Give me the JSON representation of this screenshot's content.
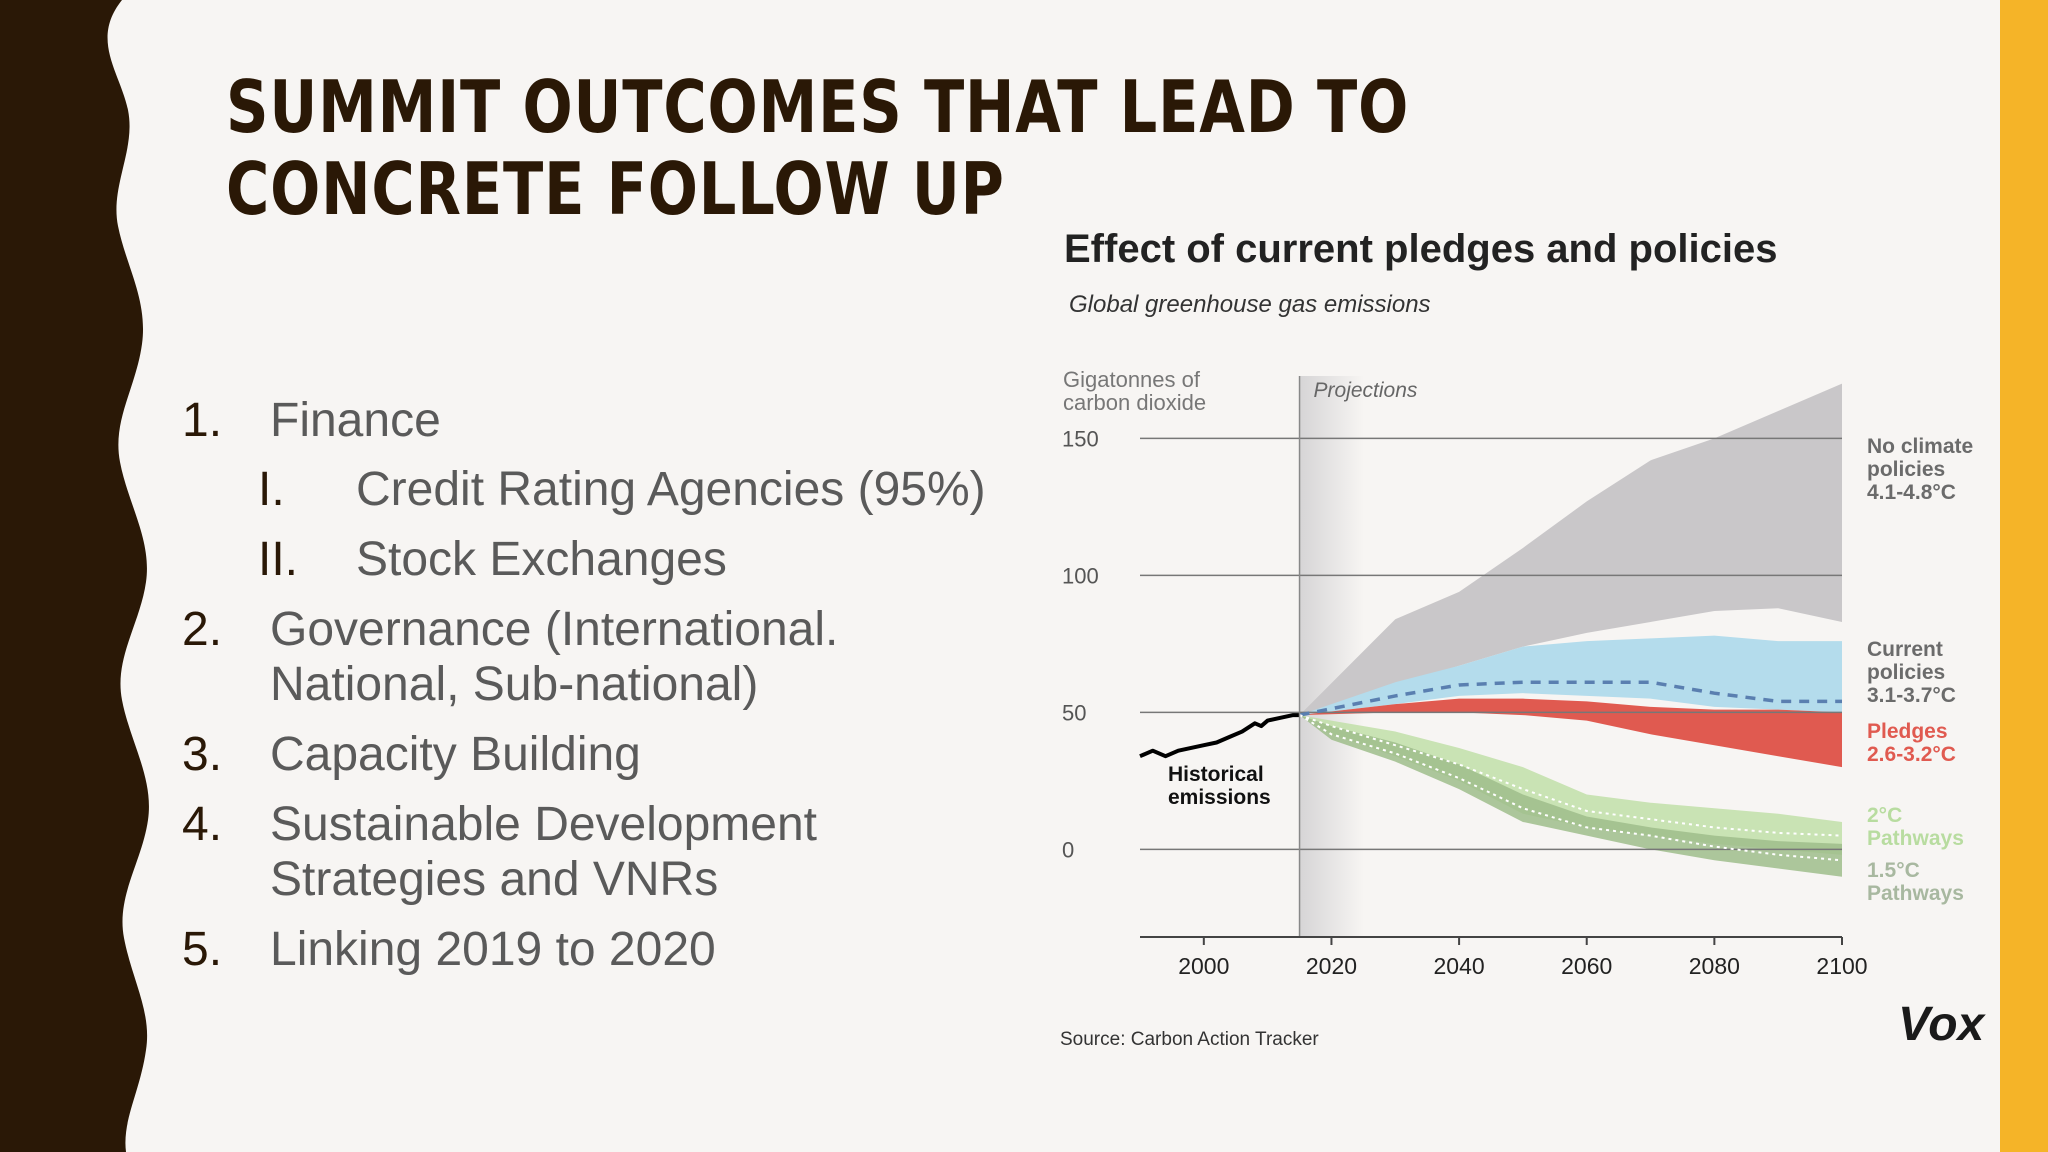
{
  "slide": {
    "title": "SUMMIT OUTCOMES THAT LEAD TO CONCRETE FOLLOW UP",
    "colors": {
      "left_band": "#2a1806",
      "right_band": "#f5b428",
      "title": "#2a1806",
      "body_text": "#5a5a5a"
    },
    "list": [
      {
        "number": "1.",
        "text": "Finance",
        "sub": [
          {
            "number": "I.",
            "text": "Credit Rating Agencies (95%)"
          },
          {
            "number": "II.",
            "text": "Stock Exchanges"
          }
        ]
      },
      {
        "number": "2.",
        "text_lines": [
          "Governance (International.",
          "National, Sub-national)"
        ]
      },
      {
        "number": "3.",
        "text": "Capacity Building"
      },
      {
        "number": "4.",
        "text_lines": [
          "Sustainable Development",
          "Strategies and VNRs"
        ]
      },
      {
        "number": "5.",
        "text": "Linking 2019 to 2020"
      }
    ]
  },
  "chart_data": {
    "type": "area",
    "title": "Effect of current pledges and policies",
    "subtitle": "Global greenhouse gas emissions",
    "ylabel_lines": [
      "Gigatonnes of",
      "carbon dioxide"
    ],
    "xlim": [
      1990,
      2100
    ],
    "ylim": [
      -32,
      160
    ],
    "yticks": [
      0,
      50,
      100,
      150
    ],
    "xticks": [
      2000,
      2020,
      2040,
      2060,
      2080,
      2100
    ],
    "projection_start": 2015,
    "projection_label": "Projections",
    "historical_label_lines": [
      "Historical",
      "emissions"
    ],
    "source": "Source: Carbon Action Tracker",
    "brand": "Vox",
    "historical": {
      "x": [
        1990,
        1992,
        1994,
        1996,
        1998,
        2000,
        2002,
        2004,
        2006,
        2008,
        2009,
        2010,
        2012,
        2014,
        2015
      ],
      "y": [
        34,
        36,
        34,
        36,
        37,
        38,
        39,
        41,
        43,
        46,
        45,
        47,
        48,
        49,
        49
      ]
    },
    "series": [
      {
        "name": "No climate policies",
        "label_lines": [
          "No climate",
          "policies",
          "4.1-4.8°C"
        ],
        "color": "#c9c7c9",
        "label_color": "#6b6b6b",
        "x": [
          2015,
          2030,
          2040,
          2050,
          2060,
          2070,
          2080,
          2090,
          2100
        ],
        "low": [
          49,
          60,
          67,
          74,
          79,
          83,
          87,
          88,
          83
        ],
        "high": [
          49,
          84,
          94,
          110,
          127,
          142,
          150,
          160,
          170
        ]
      },
      {
        "name": "Current policies",
        "label_lines": [
          "Current",
          "policies",
          "3.1-3.7°C"
        ],
        "color": "#b4dcec",
        "label_color": "#6b6b6b",
        "x": [
          2015,
          2030,
          2040,
          2050,
          2060,
          2070,
          2080,
          2090,
          2100
        ],
        "low": [
          49,
          53,
          56,
          57,
          56,
          55,
          52,
          51,
          50
        ],
        "high": [
          49,
          61,
          67,
          74,
          76,
          77,
          78,
          76,
          76
        ],
        "median": [
          49,
          56,
          60,
          61,
          61,
          61,
          57,
          54,
          54
        ]
      },
      {
        "name": "Pledges",
        "label_lines": [
          "Pledges",
          "2.6-3.2°C"
        ],
        "color": "#e05a50",
        "label_color": "#e05a50",
        "x": [
          2015,
          2030,
          2040,
          2050,
          2060,
          2070,
          2080,
          2090,
          2100
        ],
        "low": [
          49,
          50,
          50,
          49,
          47,
          42,
          38,
          34,
          30
        ],
        "high": [
          49,
          53,
          55,
          55,
          54,
          52,
          51,
          51,
          50
        ]
      },
      {
        "name": "2°C Pathways",
        "label_lines": [
          "2°C",
          "Pathways"
        ],
        "color": "#c1dfa8",
        "label_color": "#b8dca0",
        "x": [
          2015,
          2020,
          2030,
          2040,
          2050,
          2060,
          2070,
          2080,
          2090,
          2100
        ],
        "low": [
          49,
          42,
          34,
          25,
          13,
          8,
          5,
          2,
          0,
          -2
        ],
        "high": [
          49,
          47,
          43,
          37,
          30,
          20,
          17,
          15,
          13,
          10
        ],
        "median": [
          49,
          45,
          38,
          31,
          22,
          14,
          11,
          8,
          6,
          5
        ]
      },
      {
        "name": "1.5°C Pathways",
        "label_lines": [
          "1.5°C",
          "Pathways"
        ],
        "color": "#9fbd8b",
        "label_color": "#a8b8a0",
        "x": [
          2015,
          2020,
          2030,
          2040,
          2050,
          2060,
          2070,
          2080,
          2090,
          2100
        ],
        "low": [
          49,
          40,
          32,
          22,
          10,
          5,
          0,
          -4,
          -7,
          -10
        ],
        "high": [
          49,
          45,
          39,
          31,
          20,
          12,
          8,
          5,
          3,
          2
        ],
        "median": [
          49,
          42,
          35,
          26,
          15,
          8,
          5,
          1,
          -2,
          -4
        ]
      }
    ],
    "colors": {
      "axis": "#444444",
      "grid": "#777777",
      "tick_text": "#555555",
      "title": "#222222",
      "historical": "#000000",
      "median_dash": "#5a7fb0",
      "pathway_median": "#ffffff"
    }
  }
}
